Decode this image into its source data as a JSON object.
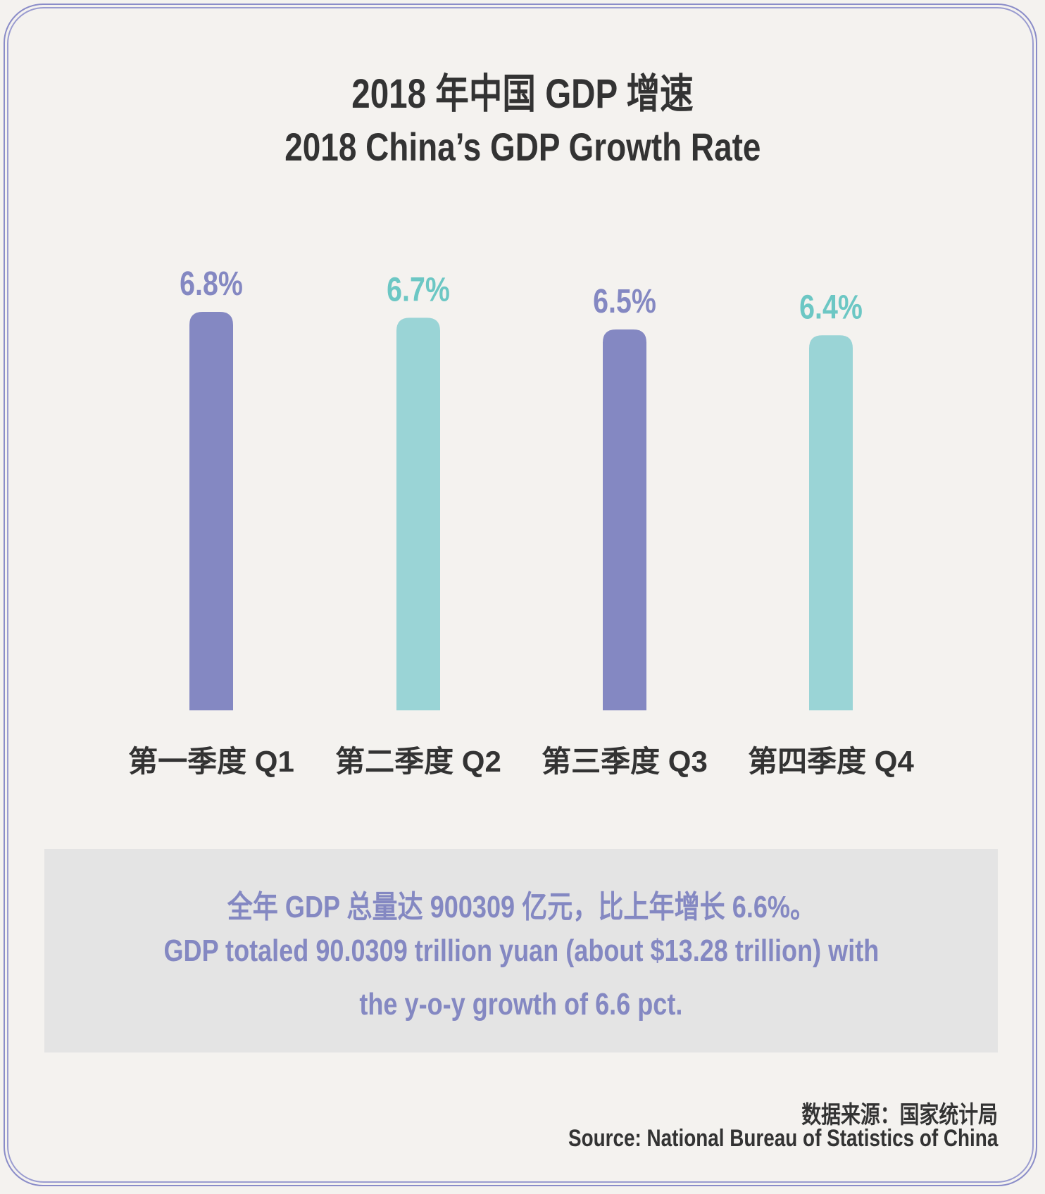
{
  "chart_data": {
    "type": "bar",
    "title": "2018 年中国 GDP 增速",
    "subtitle": "2018 China’s GDP Growth Rate",
    "categories": [
      "第一季度 Q1",
      "第二季度 Q2",
      "第三季度 Q3",
      "第四季度 Q4"
    ],
    "values": [
      6.8,
      6.7,
      6.5,
      6.4
    ],
    "value_labels": [
      "6.8%",
      "6.7%",
      "6.5%",
      "6.4%"
    ],
    "ylim": [
      0,
      6.8
    ],
    "xlabel": "",
    "ylabel": "",
    "grid": false,
    "bar_colors": [
      "#8488c2",
      "#9ad4d6",
      "#8488c2",
      "#9ad4d6"
    ],
    "label_colors": [
      "#8488c2",
      "#6cc7c4",
      "#8488c2",
      "#6cc7c4"
    ]
  },
  "summary": {
    "zh": "全年 GDP 总量达 900309 亿元，比上年增长 6.6%。",
    "en_line1": "GDP totaled 90.0309 trillion yuan (about $13.28 trillion) with",
    "en_line2": "the y-o-y growth of 6.6 pct."
  },
  "source": {
    "zh": "数据来源：国家统计局",
    "en": "Source:  National Bureau of Statistics of China"
  }
}
